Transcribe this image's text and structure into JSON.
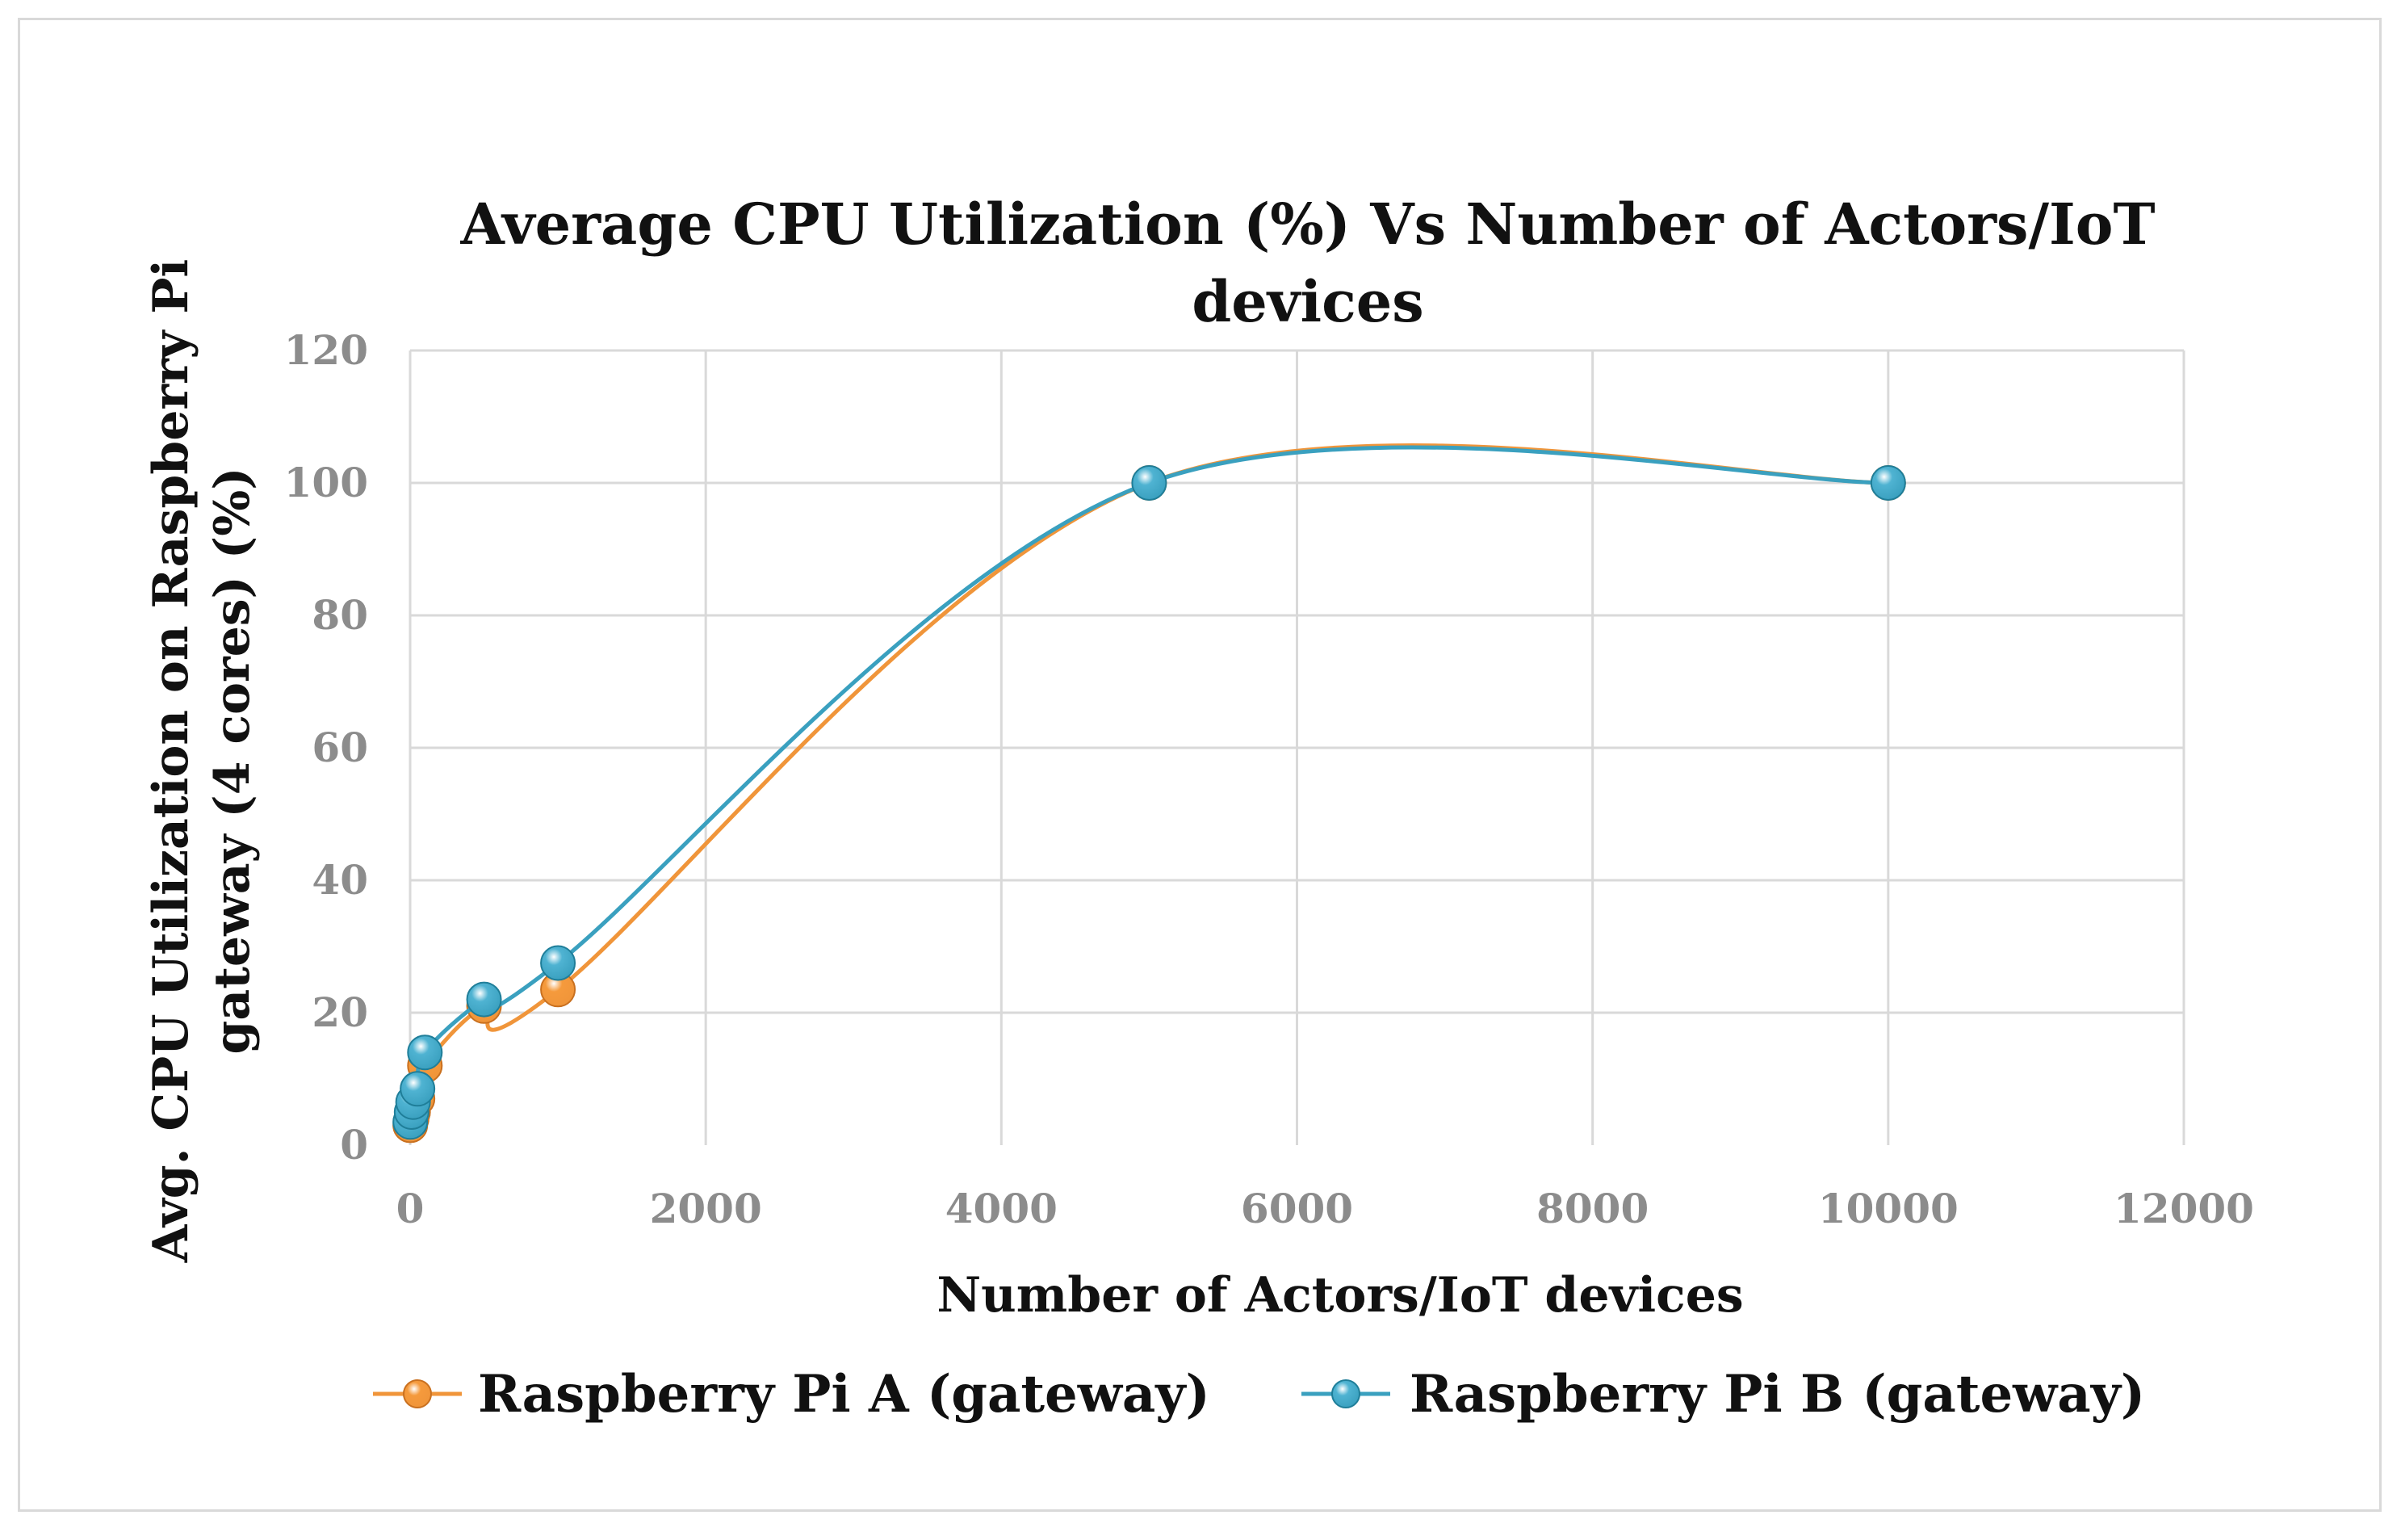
{
  "chart_data": {
    "type": "line",
    "smooth": true,
    "title_lines": [
      "Average CPU Utilization (%) Vs Number of Actors/IoT",
      "devices"
    ],
    "xlabel": "Number of Actors/IoT devices",
    "ylabel_lines": [
      "Avg. CPU Utilization on Raspberry Pi",
      "gateway (4 cores) (%)"
    ],
    "xlim": [
      0,
      12000
    ],
    "ylim": [
      0,
      120
    ],
    "x_ticks": [
      0,
      2000,
      4000,
      6000,
      8000,
      10000,
      12000
    ],
    "y_ticks": [
      0,
      20,
      40,
      60,
      80,
      100,
      120
    ],
    "grid": true,
    "legend_position": "bottom",
    "series": [
      {
        "name": "Raspberry Pi A (gateway)",
        "color": "#f0953a",
        "marker_color": "#f59a3c",
        "x": [
          1,
          10,
          20,
          50,
          100,
          500,
          1000,
          5000,
          10000
        ],
        "y": [
          3,
          4,
          5,
          7,
          12,
          21,
          23.5,
          100,
          100
        ]
      },
      {
        "name": "Raspberry Pi B (gateway)",
        "color": "#3aa0bf",
        "marker_color": "#4fb3d2",
        "x": [
          1,
          10,
          20,
          50,
          100,
          500,
          1000,
          5000,
          10000
        ],
        "y": [
          3.5,
          5,
          6.5,
          8.5,
          14,
          22,
          27.5,
          100,
          100
        ]
      }
    ]
  }
}
